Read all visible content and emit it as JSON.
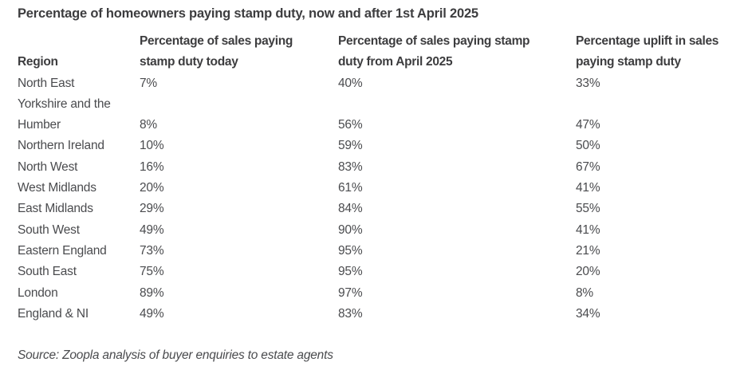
{
  "title": "Percentage of homeowners paying stamp duty, now and after 1st April 2025",
  "table": {
    "columns": [
      {
        "label": "Region"
      },
      {
        "label": "Percentage of sales paying\nstamp duty today"
      },
      {
        "label": "Percentage of sales paying stamp\nduty from April 2025"
      },
      {
        "label": "Percentage uplift in sales\npaying stamp duty"
      }
    ],
    "rows": [
      {
        "region": "North East",
        "today": "7%",
        "april": "40%",
        "uplift": "33%"
      },
      {
        "region": "Yorkshire and the\nHumber",
        "today": "8%",
        "april": "56%",
        "uplift": "47%"
      },
      {
        "region": "Northern Ireland",
        "today": "10%",
        "april": "59%",
        "uplift": "50%"
      },
      {
        "region": "North West",
        "today": "16%",
        "april": "83%",
        "uplift": "67%"
      },
      {
        "region": "West Midlands",
        "today": "20%",
        "april": "61%",
        "uplift": "41%"
      },
      {
        "region": "East Midlands",
        "today": "29%",
        "april": "84%",
        "uplift": "55%"
      },
      {
        "region": "South West",
        "today": "49%",
        "april": "90%",
        "uplift": "41%"
      },
      {
        "region": "Eastern England",
        "today": "73%",
        "april": "95%",
        "uplift": "21%"
      },
      {
        "region": "South East",
        "today": "75%",
        "april": "95%",
        "uplift": "20%"
      },
      {
        "region": "London",
        "today": "89%",
        "april": "97%",
        "uplift": "8%"
      },
      {
        "region": "England & NI",
        "today": "49%",
        "april": "83%",
        "uplift": "34%"
      }
    ]
  },
  "source": "Source: Zoopla analysis of buyer enquiries to estate agents",
  "colors": {
    "heading_text": "#3d3d3f",
    "body_text": "#4a4b4e",
    "background": "#ffffff"
  },
  "chart_data": {
    "type": "table",
    "title": "Percentage of homeowners paying stamp duty, now and after 1st April 2025",
    "columns": [
      "Region",
      "Percentage of sales paying stamp duty today",
      "Percentage of sales paying stamp duty from April 2025",
      "Percentage uplift in sales paying stamp duty"
    ],
    "units": "%",
    "rows": [
      [
        "North East",
        7,
        40,
        33
      ],
      [
        "Yorkshire and the Humber",
        8,
        56,
        47
      ],
      [
        "Northern Ireland",
        10,
        59,
        50
      ],
      [
        "North West",
        16,
        83,
        67
      ],
      [
        "West Midlands",
        20,
        61,
        41
      ],
      [
        "East Midlands",
        29,
        84,
        55
      ],
      [
        "South West",
        49,
        90,
        41
      ],
      [
        "Eastern England",
        73,
        95,
        21
      ],
      [
        "South East",
        75,
        95,
        20
      ],
      [
        "London",
        89,
        97,
        8
      ],
      [
        "England & NI",
        49,
        83,
        34
      ]
    ],
    "source": "Source: Zoopla analysis of buyer enquiries to estate agents",
    "layout": {
      "gridlines": false,
      "header_bold": true,
      "values_align": "left"
    }
  }
}
